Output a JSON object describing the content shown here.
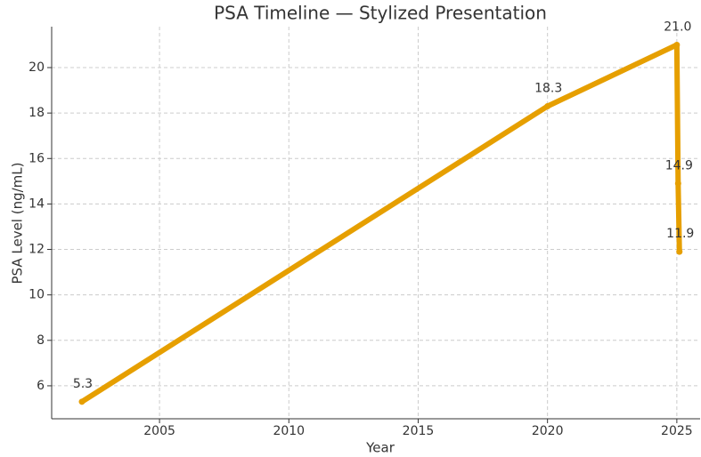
{
  "chart_data": {
    "type": "line",
    "title": "PSA Timeline — Stylized Presentation",
    "xlabel": "Year",
    "ylabel": "PSA Level (ng/mL)",
    "x": [
      2002,
      2020,
      2025,
      2025.05,
      2025.1
    ],
    "series": [
      {
        "name": "PSA",
        "color": "#e69f00",
        "values": [
          5.3,
          18.3,
          21.0,
          14.9,
          11.9
        ],
        "value_labels": [
          "5.3",
          "18.3",
          "21.0",
          "14.9",
          "11.9"
        ]
      }
    ],
    "xlim": [
      2000.83,
      2025.9
    ],
    "xticks": [
      2005,
      2010,
      2015,
      2020,
      2025
    ],
    "ylim": [
      4.55,
      21.8
    ],
    "yticks": [
      6,
      8,
      10,
      12,
      14,
      16,
      18,
      20
    ],
    "grid": true
  }
}
